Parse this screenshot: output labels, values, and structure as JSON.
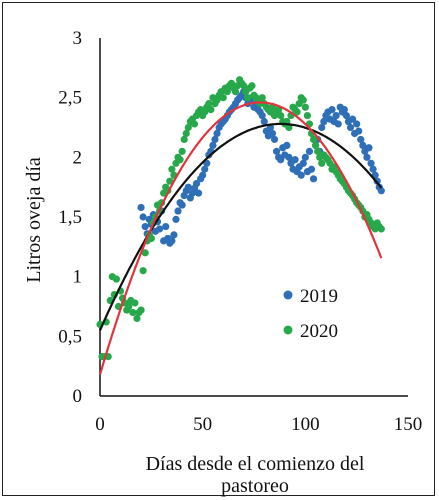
{
  "chart_data": {
    "type": "scatter",
    "xlabel": [
      "Días desde el comienzo del",
      "pastoreo"
    ],
    "ylabel": "Litros oveja día",
    "xlim": [
      0,
      150
    ],
    "ylim": [
      0,
      3
    ],
    "xticks": [
      0,
      50,
      100,
      150
    ],
    "yticks": [
      "0",
      "0,5",
      "1",
      "1,5",
      "2",
      "2,5",
      "3"
    ],
    "ytick_values": [
      0,
      0.5,
      1,
      1.5,
      2,
      2.5,
      3
    ],
    "grid": false,
    "legend_position": "right-middle",
    "series": [
      {
        "name": "2019",
        "color": "#2e6fb7",
        "trend_color": "#111111",
        "points": [
          [
            20,
            1.58
          ],
          [
            21,
            1.5
          ],
          [
            22,
            1.42
          ],
          [
            23,
            1.36
          ],
          [
            24,
            1.48
          ],
          [
            25,
            1.44
          ],
          [
            26,
            1.52
          ],
          [
            27,
            1.38
          ],
          [
            28,
            1.46
          ],
          [
            29,
            1.4
          ],
          [
            30,
            1.55
          ],
          [
            31,
            1.3
          ],
          [
            32,
            1.42
          ],
          [
            33,
            1.32
          ],
          [
            34,
            1.28
          ],
          [
            35,
            1.3
          ],
          [
            36,
            1.35
          ],
          [
            37,
            1.48
          ],
          [
            38,
            1.55
          ],
          [
            39,
            1.62
          ],
          [
            40,
            1.6
          ],
          [
            41,
            1.68
          ],
          [
            42,
            1.72
          ],
          [
            43,
            1.75
          ],
          [
            44,
            1.66
          ],
          [
            45,
            1.7
          ],
          [
            46,
            1.74
          ],
          [
            47,
            1.78
          ],
          [
            48,
            1.7
          ],
          [
            49,
            1.82
          ],
          [
            50,
            1.85
          ],
          [
            51,
            1.9
          ],
          [
            52,
            1.95
          ],
          [
            53,
            2.02
          ],
          [
            54,
            2.05
          ],
          [
            55,
            2.1
          ],
          [
            56,
            2.15
          ],
          [
            57,
            2.2
          ],
          [
            58,
            2.25
          ],
          [
            59,
            2.28
          ],
          [
            60,
            2.3
          ],
          [
            61,
            2.32
          ],
          [
            62,
            2.35
          ],
          [
            63,
            2.38
          ],
          [
            64,
            2.4
          ],
          [
            65,
            2.42
          ],
          [
            66,
            2.45
          ],
          [
            67,
            2.48
          ],
          [
            68,
            2.5
          ],
          [
            69,
            2.52
          ],
          [
            70,
            2.55
          ],
          [
            71,
            2.5
          ],
          [
            72,
            2.45
          ],
          [
            73,
            2.48
          ],
          [
            74,
            2.5
          ],
          [
            75,
            2.42
          ],
          [
            76,
            2.45
          ],
          [
            77,
            2.4
          ],
          [
            78,
            2.38
          ],
          [
            79,
            2.35
          ],
          [
            80,
            2.3
          ],
          [
            81,
            2.22
          ],
          [
            82,
            2.18
          ],
          [
            83,
            2.25
          ],
          [
            84,
            2.2
          ],
          [
            85,
            2.15
          ],
          [
            86,
            2.05
          ],
          [
            87,
            2.0
          ],
          [
            88,
            1.98
          ],
          [
            89,
            2.08
          ],
          [
            90,
            2.02
          ],
          [
            91,
            2.1
          ],
          [
            92,
            2.0
          ],
          [
            93,
            1.95
          ],
          [
            94,
            1.9
          ],
          [
            95,
            1.98
          ],
          [
            96,
            1.88
          ],
          [
            97,
            1.92
          ],
          [
            98,
            1.85
          ],
          [
            99,
            1.95
          ],
          [
            100,
            2.0
          ],
          [
            101,
            1.88
          ],
          [
            102,
            2.05
          ],
          [
            103,
            1.9
          ],
          [
            104,
            1.82
          ],
          [
            105,
            2.1
          ],
          [
            106,
            2.15
          ],
          [
            107,
            2.05
          ],
          [
            108,
            2.25
          ],
          [
            109,
            2.3
          ],
          [
            110,
            2.35
          ],
          [
            111,
            2.38
          ],
          [
            112,
            2.32
          ],
          [
            113,
            2.4
          ],
          [
            114,
            2.3
          ],
          [
            115,
            2.35
          ],
          [
            116,
            2.28
          ],
          [
            117,
            2.42
          ],
          [
            118,
            2.38
          ],
          [
            119,
            2.4
          ],
          [
            120,
            2.35
          ],
          [
            121,
            2.3
          ],
          [
            122,
            2.25
          ],
          [
            123,
            2.32
          ],
          [
            124,
            2.2
          ],
          [
            125,
            2.28
          ],
          [
            126,
            2.22
          ],
          [
            127,
            2.15
          ],
          [
            128,
            2.1
          ],
          [
            129,
            2.05
          ],
          [
            130,
            2.0
          ],
          [
            131,
            2.08
          ],
          [
            132,
            1.95
          ],
          [
            133,
            1.9
          ],
          [
            134,
            1.85
          ],
          [
            135,
            1.8
          ],
          [
            136,
            1.75
          ],
          [
            137,
            1.72
          ]
        ]
      },
      {
        "name": "2020",
        "color": "#27a84a",
        "trend_color": "#e2343b",
        "points": [
          [
            0,
            0.6
          ],
          [
            1,
            0.33
          ],
          [
            2,
            0.33
          ],
          [
            3,
            0.62
          ],
          [
            4,
            0.33
          ],
          [
            5,
            0.8
          ],
          [
            6,
            1.0
          ],
          [
            7,
            0.85
          ],
          [
            8,
            0.98
          ],
          [
            9,
            0.75
          ],
          [
            10,
            0.88
          ],
          [
            11,
            0.82
          ],
          [
            12,
            0.78
          ],
          [
            13,
            0.72
          ],
          [
            14,
            0.75
          ],
          [
            15,
            0.8
          ],
          [
            16,
            0.7
          ],
          [
            17,
            0.78
          ],
          [
            18,
            0.65
          ],
          [
            19,
            0.7
          ],
          [
            20,
            0.72
          ],
          [
            21,
            1.05
          ],
          [
            22,
            1.2
          ],
          [
            23,
            1.3
          ],
          [
            24,
            1.35
          ],
          [
            25,
            1.32
          ],
          [
            26,
            1.45
          ],
          [
            27,
            1.5
          ],
          [
            28,
            1.6
          ],
          [
            29,
            1.55
          ],
          [
            30,
            1.62
          ],
          [
            31,
            1.7
          ],
          [
            32,
            1.75
          ],
          [
            33,
            1.72
          ],
          [
            34,
            1.8
          ],
          [
            35,
            1.9
          ],
          [
            36,
            1.85
          ],
          [
            37,
            1.95
          ],
          [
            38,
            2.0
          ],
          [
            39,
            1.98
          ],
          [
            40,
            2.05
          ],
          [
            41,
            2.15
          ],
          [
            42,
            2.2
          ],
          [
            43,
            2.25
          ],
          [
            44,
            2.3
          ],
          [
            45,
            2.32
          ],
          [
            46,
            2.28
          ],
          [
            47,
            2.35
          ],
          [
            48,
            2.38
          ],
          [
            49,
            2.4
          ],
          [
            50,
            2.35
          ],
          [
            51,
            2.38
          ],
          [
            52,
            2.42
          ],
          [
            53,
            2.45
          ],
          [
            54,
            2.4
          ],
          [
            55,
            2.5
          ],
          [
            56,
            2.45
          ],
          [
            57,
            2.48
          ],
          [
            58,
            2.52
          ],
          [
            59,
            2.55
          ],
          [
            60,
            2.5
          ],
          [
            61,
            2.58
          ],
          [
            62,
            2.55
          ],
          [
            63,
            2.6
          ],
          [
            64,
            2.62
          ],
          [
            65,
            2.58
          ],
          [
            66,
            2.55
          ],
          [
            67,
            2.6
          ],
          [
            68,
            2.65
          ],
          [
            69,
            2.62
          ],
          [
            70,
            2.6
          ],
          [
            71,
            2.55
          ],
          [
            72,
            2.5
          ],
          [
            73,
            2.58
          ],
          [
            74,
            2.6
          ],
          [
            75,
            2.52
          ],
          [
            76,
            2.5
          ],
          [
            77,
            2.48
          ],
          [
            78,
            2.45
          ],
          [
            79,
            2.5
          ],
          [
            80,
            2.45
          ],
          [
            81,
            2.42
          ],
          [
            82,
            2.4
          ],
          [
            83,
            2.38
          ],
          [
            84,
            2.42
          ],
          [
            85,
            2.35
          ],
          [
            86,
            2.38
          ],
          [
            87,
            2.4
          ],
          [
            88,
            2.35
          ],
          [
            89,
            2.3
          ],
          [
            90,
            2.28
          ],
          [
            91,
            2.3
          ],
          [
            92,
            2.25
          ],
          [
            93,
            2.35
          ],
          [
            94,
            2.42
          ],
          [
            95,
            2.4
          ],
          [
            96,
            2.38
          ],
          [
            97,
            2.45
          ],
          [
            98,
            2.5
          ],
          [
            99,
            2.48
          ],
          [
            100,
            2.42
          ],
          [
            101,
            2.35
          ],
          [
            102,
            2.28
          ],
          [
            103,
            2.2
          ],
          [
            104,
            2.15
          ],
          [
            105,
            2.1
          ],
          [
            106,
            2.05
          ],
          [
            107,
            2.0
          ],
          [
            108,
            1.95
          ],
          [
            109,
            2.02
          ],
          [
            110,
            2.0
          ],
          [
            111,
            1.98
          ],
          [
            112,
            1.95
          ],
          [
            113,
            1.9
          ],
          [
            114,
            1.92
          ],
          [
            115,
            1.88
          ],
          [
            116,
            1.85
          ],
          [
            117,
            1.82
          ],
          [
            118,
            1.8
          ],
          [
            119,
            1.78
          ],
          [
            120,
            1.75
          ],
          [
            121,
            1.72
          ],
          [
            122,
            1.7
          ],
          [
            123,
            1.68
          ],
          [
            124,
            1.65
          ],
          [
            125,
            1.62
          ],
          [
            126,
            1.6
          ],
          [
            127,
            1.58
          ],
          [
            128,
            1.55
          ],
          [
            129,
            1.5
          ],
          [
            130,
            1.52
          ],
          [
            131,
            1.48
          ],
          [
            132,
            1.45
          ],
          [
            133,
            1.42
          ],
          [
            134,
            1.4
          ],
          [
            135,
            1.45
          ],
          [
            136,
            1.42
          ],
          [
            137,
            1.4
          ]
        ]
      }
    ],
    "trendlines": [
      {
        "series": "2019",
        "color": "#111111",
        "type": "polynomial",
        "x_range": [
          0,
          137
        ],
        "peak_x": 88,
        "peak_y": 2.28,
        "y_at_0": 0.55,
        "y_at_end": 1.8
      },
      {
        "series": "2020",
        "color": "#e2343b",
        "type": "polynomial",
        "x_range": [
          0,
          137
        ],
        "peak_x": 78,
        "peak_y": 2.46,
        "y_at_0": 0.18,
        "y_at_end": 1.25
      }
    ]
  }
}
